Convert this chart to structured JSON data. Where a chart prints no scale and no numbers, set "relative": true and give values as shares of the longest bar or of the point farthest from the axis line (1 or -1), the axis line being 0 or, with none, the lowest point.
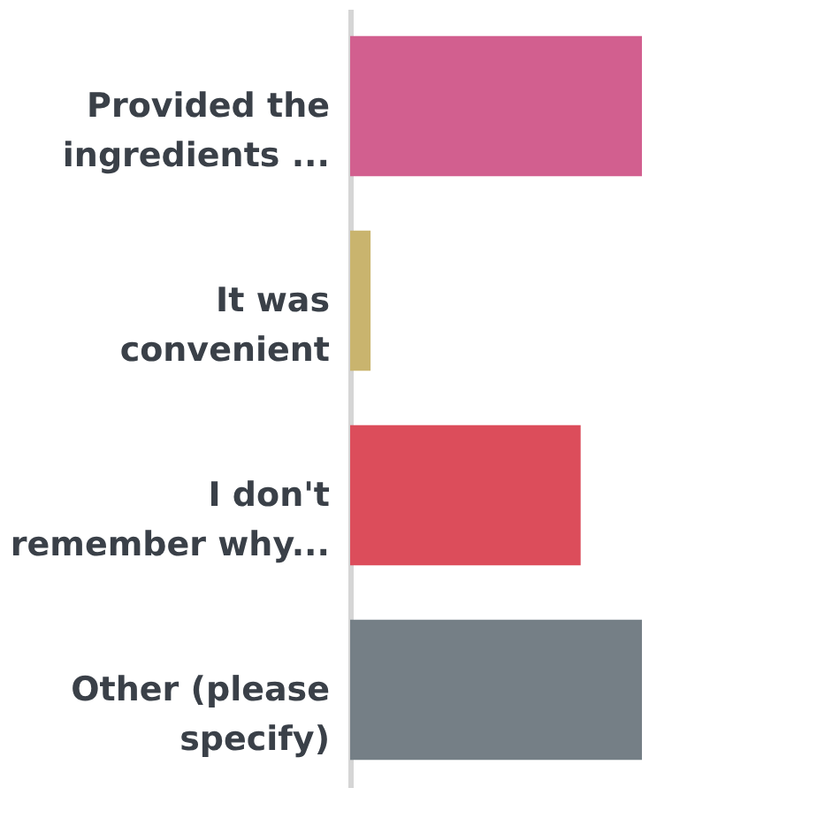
{
  "chart_data": {
    "type": "bar",
    "orientation": "horizontal",
    "relative": true,
    "categories": [
      "Provided the ingredients ...",
      "It was convenient",
      "I don't remember why...",
      "Other (please specify)"
    ],
    "values": [
      1,
      0.07,
      0.79,
      1
    ],
    "colors": [
      "#d25f8f",
      "#c9b46e",
      "#dc4d5b",
      "#757f86"
    ]
  }
}
